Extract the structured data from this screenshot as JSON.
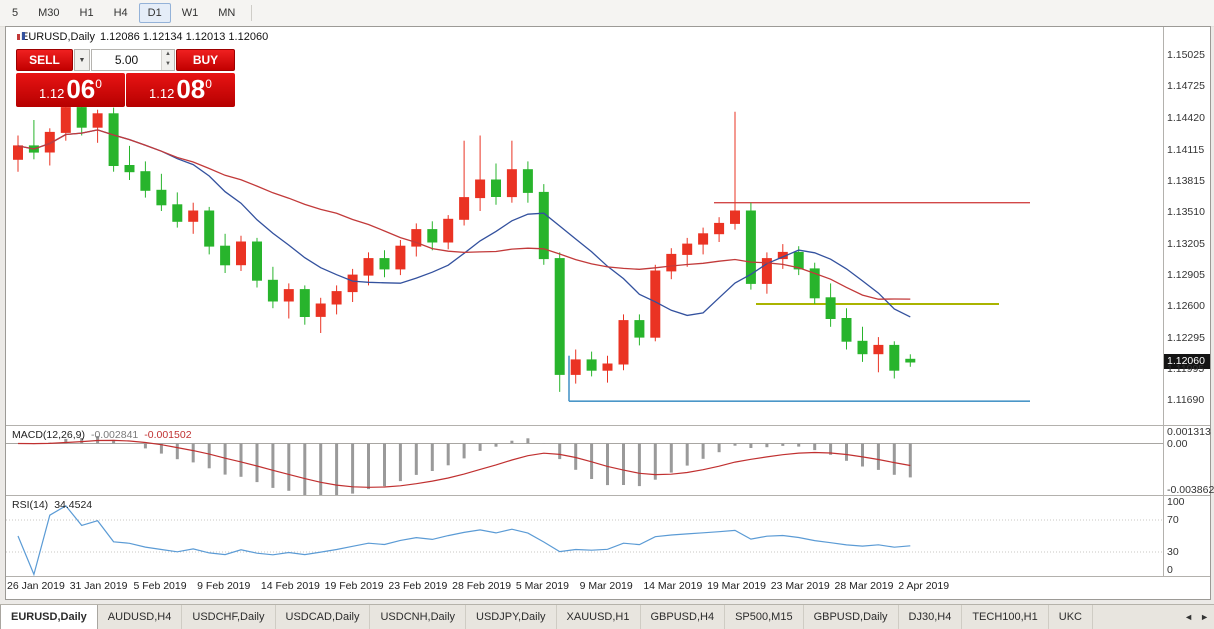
{
  "toolbar": {
    "timeframes": [
      {
        "label": "5",
        "active": false
      },
      {
        "label": "M30",
        "active": false
      },
      {
        "label": "H1",
        "active": false
      },
      {
        "label": "H4",
        "active": false
      },
      {
        "label": "D1",
        "active": true
      },
      {
        "label": "W1",
        "active": false
      },
      {
        "label": "MN",
        "active": false
      }
    ]
  },
  "chart_header": {
    "symbol": "EURUSD,Daily",
    "ohlc": "1.12086 1.12134 1.12013 1.12060"
  },
  "trade_panel": {
    "sell_label": "SELL",
    "buy_label": "BUY",
    "volume": "5.00",
    "combo_arrow": "▼",
    "spin_up": "▲",
    "spin_down": "▼",
    "sell_quote": {
      "base": "1.12",
      "big": "06",
      "sup": "0"
    },
    "buy_quote": {
      "base": "1.12",
      "big": "08",
      "sup": "0"
    }
  },
  "price_axis": {
    "ticks": [
      "1.15025",
      "1.14725",
      "1.14420",
      "1.14115",
      "1.13815",
      "1.13510",
      "1.13205",
      "1.12905",
      "1.12600",
      "1.12295",
      "1.11995",
      "1.11690"
    ],
    "current_tag": "1.12060"
  },
  "macd_panel": {
    "label": "MACD(12,26,9)",
    "values": [
      "-0.002841",
      "-0.001502"
    ],
    "axis": [
      "0.001313",
      "0.00",
      "-0.003862"
    ],
    "range": [
      0.001313,
      -0.003862
    ],
    "histogram_color": "#9a9a9a",
    "signal_color": "#c03030"
  },
  "rsi_panel": {
    "label": "RSI(14)",
    "value": "34.4524",
    "axis": [
      100,
      70,
      30,
      0
    ],
    "levels": [
      70,
      30
    ],
    "line_color": "#5b9bd5"
  },
  "time_axis": {
    "labels": [
      {
        "i": 0,
        "t": "26 Jan 2019"
      },
      {
        "i": 4,
        "t": "31 Jan 2019"
      },
      {
        "i": 8,
        "t": "5 Feb 2019"
      },
      {
        "i": 12,
        "t": "9 Feb 2019"
      },
      {
        "i": 16,
        "t": "14 Feb 2019"
      },
      {
        "i": 20,
        "t": "19 Feb 2019"
      },
      {
        "i": 24,
        "t": "23 Feb 2019"
      },
      {
        "i": 28,
        "t": "28 Feb 2019"
      },
      {
        "i": 32,
        "t": "5 Mar 2019"
      },
      {
        "i": 36,
        "t": "9 Mar 2019"
      },
      {
        "i": 40,
        "t": "14 Mar 2019"
      },
      {
        "i": 44,
        "t": "19 Mar 2019"
      },
      {
        "i": 48,
        "t": "23 Mar 2019"
      },
      {
        "i": 52,
        "t": "28 Mar 2019"
      },
      {
        "i": 56,
        "t": "2 Apr 2019"
      }
    ]
  },
  "tabs": {
    "items": [
      {
        "label": "EURUSD,Daily",
        "active": true
      },
      {
        "label": "AUDUSD,H4",
        "active": false
      },
      {
        "label": "USDCHF,Daily",
        "active": false
      },
      {
        "label": "USDCAD,Daily",
        "active": false
      },
      {
        "label": "USDCNH,Daily",
        "active": false
      },
      {
        "label": "USDJPY,Daily",
        "active": false
      },
      {
        "label": "XAUUSD,H1",
        "active": false
      },
      {
        "label": "GBPUSD,H4",
        "active": false
      },
      {
        "label": "SP500,M15",
        "active": false
      },
      {
        "label": "GBPUSD,Daily",
        "active": false
      },
      {
        "label": "DJ30,H4",
        "active": false
      },
      {
        "label": "TECH100,H1",
        "active": false
      },
      {
        "label": "UKC",
        "active": false
      }
    ],
    "scroll_left": "◄",
    "scroll_right": "►"
  },
  "chart_data": {
    "type": "candlestick",
    "symbol": "EURUSD",
    "timeframe": "Daily",
    "note": "red = bullish candle, green = bearish candle",
    "up_color": "#ea3323",
    "down_color": "#28b42c",
    "price_range": [
      1.1145,
      1.153
    ],
    "visible_fraction": 0.785,
    "current_price": 1.1206,
    "today_ohlc": {
      "o": 1.12086,
      "h": 1.12134,
      "l": 1.12013,
      "c": 1.1206
    },
    "candles": [
      [
        1.1402,
        1.1425,
        1.139,
        1.1415
      ],
      [
        1.1415,
        1.144,
        1.1402,
        1.1409
      ],
      [
        1.1409,
        1.1432,
        1.1396,
        1.1428
      ],
      [
        1.1428,
        1.1462,
        1.142,
        1.1452
      ],
      [
        1.1452,
        1.1458,
        1.1425,
        1.1433
      ],
      [
        1.1433,
        1.145,
        1.1418,
        1.1446
      ],
      [
        1.1446,
        1.1452,
        1.139,
        1.1396
      ],
      [
        1.1396,
        1.1415,
        1.1382,
        1.139
      ],
      [
        1.139,
        1.14,
        1.1365,
        1.1372
      ],
      [
        1.1372,
        1.1388,
        1.1352,
        1.1358
      ],
      [
        1.1358,
        1.137,
        1.1336,
        1.1342
      ],
      [
        1.1342,
        1.136,
        1.133,
        1.1352
      ],
      [
        1.1352,
        1.1356,
        1.131,
        1.1318
      ],
      [
        1.1318,
        1.133,
        1.1292,
        1.13
      ],
      [
        1.13,
        1.1328,
        1.1294,
        1.1322
      ],
      [
        1.1322,
        1.1326,
        1.1278,
        1.1285
      ],
      [
        1.1285,
        1.1298,
        1.1258,
        1.1265
      ],
      [
        1.1265,
        1.1282,
        1.1248,
        1.1276
      ],
      [
        1.1276,
        1.128,
        1.1242,
        1.125
      ],
      [
        1.125,
        1.1268,
        1.1234,
        1.1262
      ],
      [
        1.1262,
        1.128,
        1.1252,
        1.1274
      ],
      [
        1.1274,
        1.1296,
        1.1264,
        1.129
      ],
      [
        1.129,
        1.1312,
        1.128,
        1.1306
      ],
      [
        1.1306,
        1.1314,
        1.1288,
        1.1296
      ],
      [
        1.1296,
        1.1324,
        1.129,
        1.1318
      ],
      [
        1.1318,
        1.134,
        1.1308,
        1.1334
      ],
      [
        1.1334,
        1.1342,
        1.1314,
        1.1322
      ],
      [
        1.1322,
        1.1348,
        1.1315,
        1.1344
      ],
      [
        1.1344,
        1.142,
        1.1338,
        1.1365
      ],
      [
        1.1365,
        1.1425,
        1.1352,
        1.1382
      ],
      [
        1.1382,
        1.1398,
        1.1358,
        1.1366
      ],
      [
        1.1366,
        1.142,
        1.136,
        1.1392
      ],
      [
        1.1392,
        1.14,
        1.136,
        1.137
      ],
      [
        1.137,
        1.1378,
        1.13,
        1.1306
      ],
      [
        1.1306,
        1.1312,
        1.1177,
        1.1194
      ],
      [
        1.1194,
        1.1218,
        1.1185,
        1.1208
      ],
      [
        1.1208,
        1.1216,
        1.1192,
        1.1198
      ],
      [
        1.1198,
        1.1212,
        1.1186,
        1.1204
      ],
      [
        1.1204,
        1.1252,
        1.1198,
        1.1246
      ],
      [
        1.1246,
        1.1252,
        1.1222,
        1.123
      ],
      [
        1.123,
        1.13,
        1.1226,
        1.1294
      ],
      [
        1.1294,
        1.1316,
        1.1286,
        1.131
      ],
      [
        1.131,
        1.1326,
        1.1298,
        1.132
      ],
      [
        1.132,
        1.1336,
        1.131,
        1.133
      ],
      [
        1.133,
        1.1346,
        1.1322,
        1.134
      ],
      [
        1.134,
        1.1448,
        1.1334,
        1.1352
      ],
      [
        1.1352,
        1.136,
        1.1276,
        1.1282
      ],
      [
        1.1282,
        1.1312,
        1.1272,
        1.1306
      ],
      [
        1.1306,
        1.132,
        1.1296,
        1.1312
      ],
      [
        1.1312,
        1.1318,
        1.129,
        1.1296
      ],
      [
        1.1296,
        1.1302,
        1.1262,
        1.1268
      ],
      [
        1.1268,
        1.1282,
        1.124,
        1.1248
      ],
      [
        1.1248,
        1.1258,
        1.1218,
        1.1226
      ],
      [
        1.1226,
        1.124,
        1.1206,
        1.1214
      ],
      [
        1.1214,
        1.123,
        1.1196,
        1.1222
      ],
      [
        1.1222,
        1.1226,
        1.119,
        1.1198
      ],
      [
        1.12086,
        1.12134,
        1.12013,
        1.1206
      ]
    ],
    "moving_averages": [
      {
        "period": 10,
        "color": "#33519e"
      },
      {
        "period": 21,
        "color": "#c23a3a"
      }
    ],
    "levels": [
      {
        "price": 1.136,
        "color": "#d24848",
        "from": 0.612,
        "to": 0.885,
        "w": 1.3
      },
      {
        "price": 1.1262,
        "color": "#aab400",
        "from": 0.648,
        "to": 0.858,
        "w": 2
      },
      {
        "price": 1.1168,
        "color": "#4a96c8",
        "from": 0.487,
        "to": 0.885,
        "w": 1.6,
        "vtick_top": 1.1212
      }
    ],
    "indicators": [
      {
        "name": "MACD",
        "params": "12,26,9",
        "current": [
          -0.002841,
          -0.001502
        ]
      },
      {
        "name": "RSI",
        "params": "14",
        "current": 34.4524
      }
    ]
  }
}
